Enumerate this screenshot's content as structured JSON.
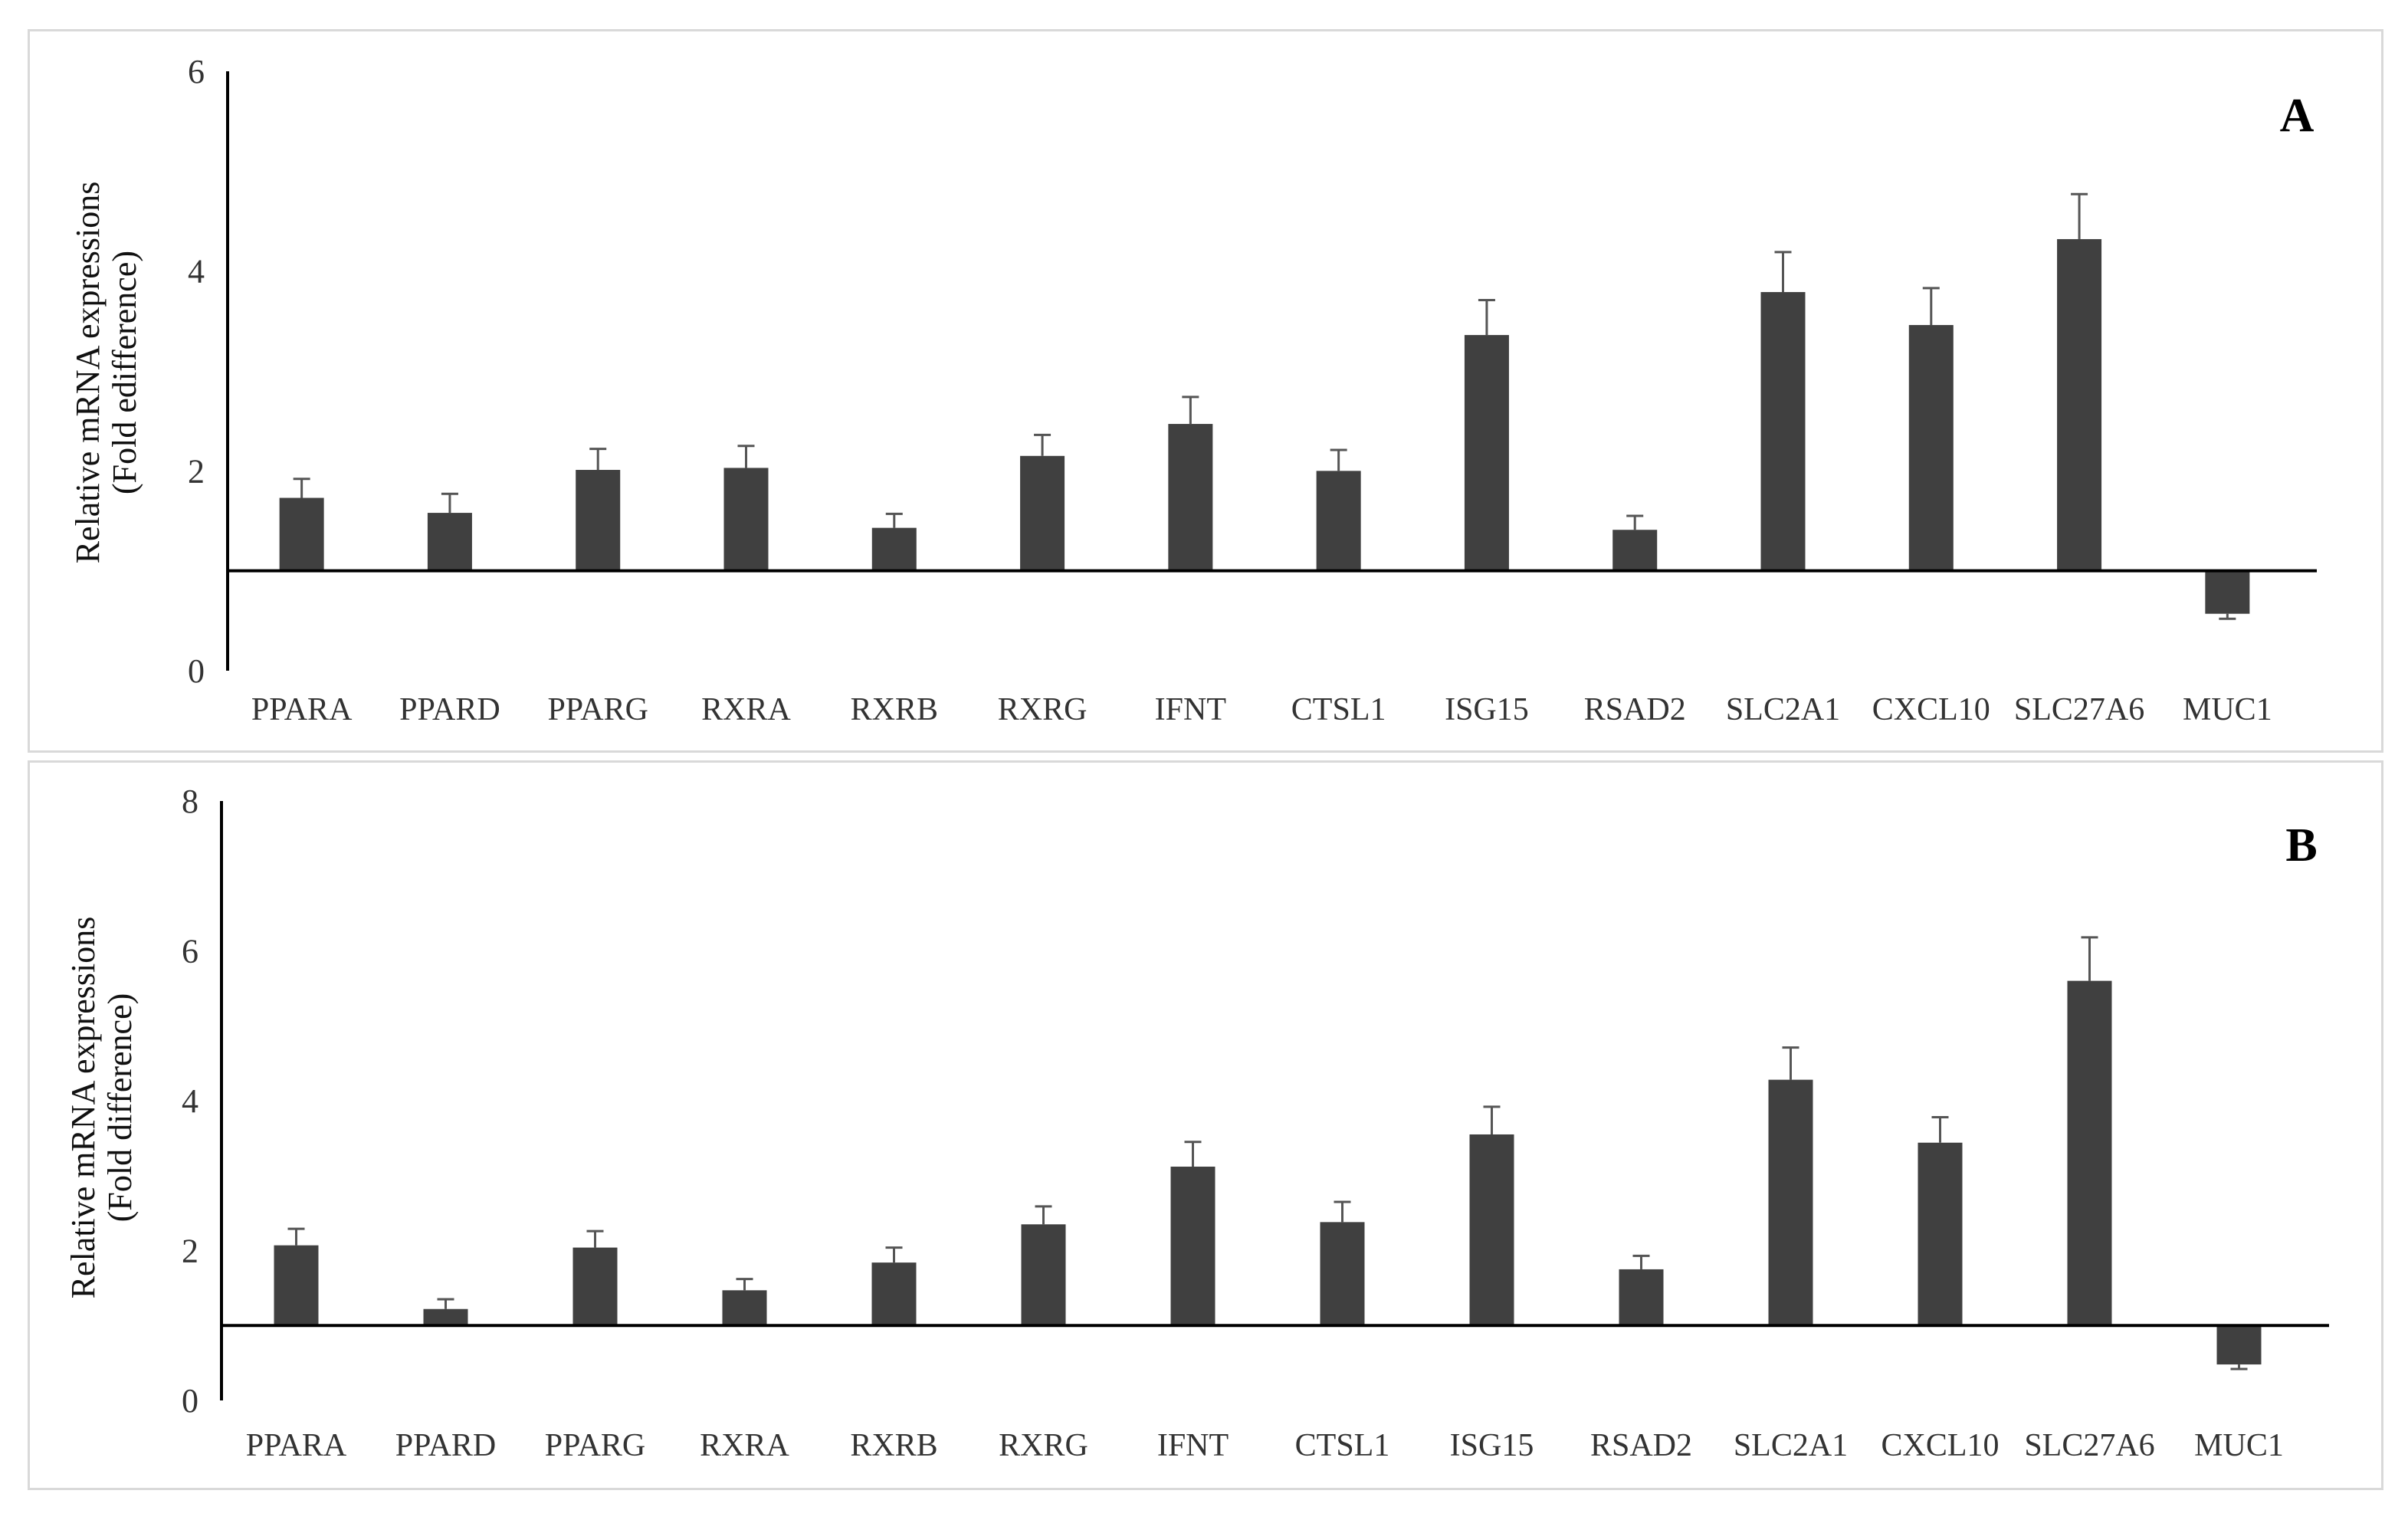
{
  "chart_data": [
    {
      "type": "bar",
      "panel_label": "A",
      "ylabel_lines": [
        "Relative mRNA expressions",
        "(Fold edifference)"
      ],
      "ylim": [
        0,
        6
      ],
      "yticks": [
        0,
        2,
        4,
        6
      ],
      "baseline": 1,
      "grid": false,
      "bar_color": "#404040",
      "categories": [
        "PPARA",
        "PPARD",
        "PPARG",
        "RXRA",
        "RXRB",
        "RXRG",
        "IFNT",
        "CTSL1",
        "ISG15",
        "RSAD2",
        "SLC2A1",
        "CXCL10",
        "SLC27A6",
        "MUC1"
      ],
      "values": [
        1.73,
        1.58,
        2.01,
        2.03,
        1.43,
        2.15,
        2.47,
        2.0,
        3.36,
        1.41,
        3.79,
        3.46,
        4.32,
        0.57
      ],
      "errors": [
        0.19,
        0.19,
        0.21,
        0.22,
        0.14,
        0.21,
        0.27,
        0.21,
        0.35,
        0.14,
        0.4,
        0.37,
        0.45,
        0.05
      ]
    },
    {
      "type": "bar",
      "panel_label": "B",
      "ylabel_lines": [
        "Relative mRNA expressions",
        "(Fold difference)"
      ],
      "ylim": [
        0,
        8
      ],
      "yticks": [
        0,
        2,
        4,
        6,
        8
      ],
      "baseline": 1,
      "grid": false,
      "bar_color": "#404040",
      "categories": [
        "PPARA",
        "PPARD",
        "PPARG",
        "RXRA",
        "RXRB",
        "RXRG",
        "IFNT",
        "CTSL1",
        "ISG15",
        "RSAD2",
        "SLC2A1",
        "CXCL10",
        "SLC27A6",
        "MUC1"
      ],
      "values": [
        2.07,
        1.22,
        2.04,
        1.47,
        1.84,
        2.35,
        3.12,
        2.38,
        3.55,
        1.75,
        4.28,
        3.44,
        5.6,
        0.48
      ],
      "errors": [
        0.22,
        0.13,
        0.22,
        0.15,
        0.2,
        0.24,
        0.33,
        0.27,
        0.37,
        0.18,
        0.43,
        0.34,
        0.58,
        0.06
      ]
    }
  ]
}
